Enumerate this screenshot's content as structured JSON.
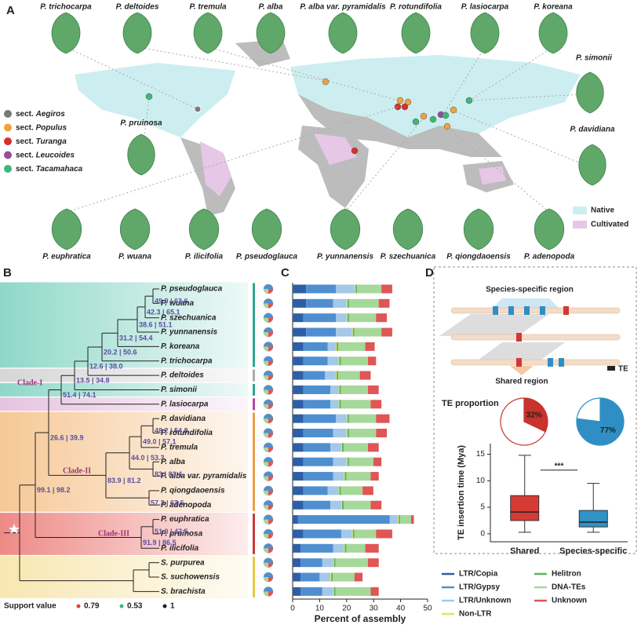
{
  "panel_labels": [
    "A",
    "B",
    "C",
    "D"
  ],
  "panel_a": {
    "top_species": [
      "P. trichocarpa",
      "P. deltoides",
      "P. tremula",
      "P. alba",
      "P. alba var. pyramidalis",
      "P. rotundifolia",
      "P. lasiocarpa",
      "P. koreana"
    ],
    "side_species": [
      "P. simonii",
      "P. davidiana",
      "P. pruinosa"
    ],
    "bottom_species": [
      "P. euphratica",
      "P. wuana",
      "P. ilicifolia",
      "P. pseudoglauca",
      "P. yunnanensis",
      "P. szechuanica",
      "P. qiongdaoensis",
      "P. adenopoda"
    ],
    "sections": [
      {
        "prefix": "sect.",
        "name": "Aegiros",
        "color": "#7a7a7a"
      },
      {
        "prefix": "sect.",
        "name": "Populus",
        "color": "#f0a23c"
      },
      {
        "prefix": "sect.",
        "name": "Turanga",
        "color": "#d62f2f"
      },
      {
        "prefix": "sect.",
        "name": "Leucoides",
        "color": "#9b4b9b"
      },
      {
        "prefix": "sect.",
        "name": "Tacamahaca",
        "color": "#3cb878"
      }
    ],
    "map_legend": [
      {
        "name": "Native",
        "color": "#cdeef0"
      },
      {
        "name": "Cultivated",
        "color": "#e6c7e6"
      }
    ]
  },
  "panel_b": {
    "taxa": [
      "P. pseudoglauca",
      "P. wuana",
      "P. szechuanica",
      "P. yunnanensis",
      "P. koreana",
      "P. trichocarpa",
      "P. deltoides",
      "P. simonii",
      "P. lasiocarpa",
      "P. davidiana",
      "P. rotundifolia",
      "P. tremula",
      "P. alba",
      "P. alba var. pyramidalis",
      "P. qiongdaoensis",
      "P. adenopoda",
      "P. euphratica",
      "P. pruinosa",
      "P. ilicifolia",
      "S. purpurea",
      "S. suchowensis",
      "S. brachista"
    ],
    "supports": [
      "49.9 | 63.6",
      "42.3 | 65.1",
      "38.6 | 51.1",
      "31.2 | 54.4",
      "20.2 | 50.6",
      "12.6 | 38.0",
      "13.5 | 34.8",
      "51.4 | 74.1",
      "26.6 | 39.9",
      "48.2 | 54.8",
      "49.0 | 57.1",
      "44.0 | 53.3",
      "83 | 83.4",
      "83.9 | 81.2",
      "57.3 | 63.6",
      "99.1 | 98.2",
      "51.0 | 47.5",
      "91.9 | 86.5"
    ],
    "clades": [
      "Clade-I",
      "Clade-II",
      "Clade-III"
    ],
    "support_legend": {
      "title": "Support value",
      "items": [
        {
          "label": "0.79",
          "color": "#e04040"
        },
        {
          "label": "0.53",
          "color": "#3cb878"
        },
        {
          "label": "1",
          "color": "#222222"
        }
      ]
    }
  },
  "panel_d": {
    "top_label": "Species-specific region",
    "bottom_label": "Shared region",
    "te_label": "TE"
  },
  "chart_data": [
    {
      "type": "stacked_barh",
      "xlabel": "Percent of assembly",
      "xlim": [
        0,
        50
      ],
      "xticks": [
        0,
        10,
        20,
        30,
        40,
        50
      ],
      "series": [
        {
          "name": "LTR/Copia",
          "color": "#2e5fa6",
          "values": [
            5,
            5,
            4,
            5,
            4,
            4,
            4,
            4,
            4,
            4,
            4,
            4,
            4,
            4,
            4,
            4,
            2,
            4,
            3,
            3,
            3,
            3
          ]
        },
        {
          "name": "LTR/Gypsy",
          "color": "#4f8fd0",
          "values": [
            11,
            10,
            12,
            11,
            9,
            9,
            8,
            10,
            10,
            12,
            11,
            10,
            11,
            11,
            9,
            10,
            34,
            14,
            12,
            8,
            7,
            8
          ]
        },
        {
          "name": "LTR/Unknown",
          "color": "#a4c8e8",
          "values": [
            7,
            5,
            4,
            6,
            3,
            4,
            4,
            3,
            3,
            4,
            5,
            4,
            5,
            4,
            4,
            4,
            3,
            4,
            4,
            4,
            4,
            4
          ]
        },
        {
          "name": "Non-LTR",
          "color": "#e6e06a",
          "values": [
            0.3,
            0.3,
            0.3,
            0.3,
            0.3,
            0.3,
            0.3,
            0.3,
            0.3,
            0.3,
            0.3,
            0.3,
            0.3,
            0.3,
            0.3,
            0.3,
            0.3,
            0.3,
            0.3,
            0.3,
            0.3,
            0.3
          ]
        },
        {
          "name": "Helitron",
          "color": "#5fb35f",
          "values": [
            0.6,
            0.6,
            0.6,
            0.6,
            0.6,
            0.6,
            0.6,
            0.6,
            0.6,
            0.6,
            0.6,
            0.6,
            0.6,
            0.6,
            0.6,
            0.6,
            0.6,
            0.6,
            0.6,
            0.6,
            0.6,
            0.6
          ]
        },
        {
          "name": "DNA-TEs",
          "color": "#a6d89a",
          "values": [
            9,
            11,
            10,
            10,
            10,
            10,
            8,
            10,
            11,
            10,
            10,
            9,
            9,
            9,
            8,
            10,
            4,
            8,
            7,
            12,
            8,
            13
          ]
        },
        {
          "name": "Unknown",
          "color": "#e05555",
          "values": [
            4,
            4,
            4,
            4,
            3.5,
            3,
            4,
            4,
            4,
            5,
            4,
            4,
            3,
            3,
            4,
            4,
            1,
            6,
            5,
            4,
            3,
            3
          ]
        }
      ]
    },
    {
      "type": "pie",
      "title": "TE proportion",
      "values": [
        32,
        68
      ],
      "value_labels": [
        "32%",
        null
      ],
      "colors": [
        "#c8332d",
        "#ffffff"
      ],
      "edge": "#c8332d"
    },
    {
      "type": "pie",
      "values": [
        77,
        23
      ],
      "value_labels": [
        "77%",
        null
      ],
      "colors": [
        "#2f8fc4",
        "#ffffff"
      ],
      "edge": "#2f8fc4"
    },
    {
      "type": "box",
      "ylabel": "TE insertion time (Mya)",
      "categories": [
        "Shared",
        "Species-specific"
      ],
      "colors": [
        "#d63a34",
        "#2f93c6"
      ],
      "ylim": [
        -1.5,
        17
      ],
      "yticks": [
        0,
        5,
        10,
        15
      ],
      "boxes": [
        {
          "low": 0.3,
          "q1": 2.5,
          "median": 4.1,
          "q3": 7.2,
          "high": 14.8
        },
        {
          "low": 0.3,
          "q1": 1.3,
          "median": 2.2,
          "q3": 4.4,
          "high": 9.5
        }
      ],
      "annotation": "***"
    }
  ]
}
